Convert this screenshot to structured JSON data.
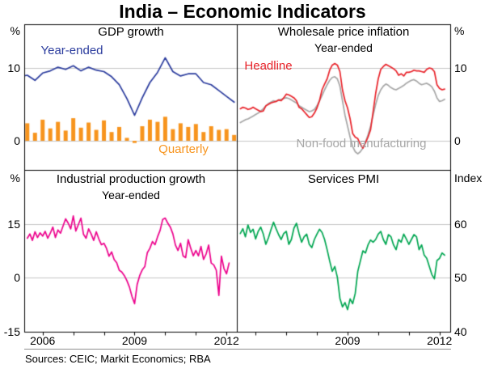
{
  "chart_data": {
    "type": "line",
    "title": "India – Economic Indicators",
    "sources": "Sources: CEIC; Markit Economics; RBA",
    "layout": {
      "rows": 2,
      "cols": 2,
      "grid": "on",
      "style": "four-panel-rba"
    },
    "colors": {
      "frame": "#000000",
      "grid": "#c6c6c6",
      "background": "#ffffff",
      "blue": "#2a3b9d",
      "orange": "#f7941d",
      "red": "#e8232a",
      "gray": "#a6a6a6",
      "pink": "#ec008c",
      "green": "#00a651"
    },
    "x_axis": {
      "range": [
        2005.4,
        2012.35
      ],
      "tick_years": [
        2006,
        2007,
        2008,
        2009,
        2010,
        2011,
        2012
      ],
      "labeled_ticks": {
        "left": [
          2006,
          2009,
          2012
        ],
        "right": [
          2009,
          2012
        ]
      }
    },
    "panels": [
      {
        "id": "gdp-growth",
        "title": "GDP growth",
        "subtitle": "",
        "position": "top-left",
        "y_axis_side": "left",
        "unit": "%",
        "ylim": [
          -4,
          16
        ],
        "yticks": [
          0,
          10
        ],
        "annotations": [
          {
            "text": "Year-ended",
            "color": "#2a3b9d"
          },
          {
            "text": "Quarterly",
            "color": "#f7941d"
          }
        ],
        "series": [
          {
            "name": "Quarterly",
            "type": "bar",
            "color": "#f7941d",
            "x_start": 2005.25,
            "x_step": 0.25,
            "values": [
              1.9,
              2.4,
              1.1,
              2.9,
              1.7,
              2.6,
              1.4,
              3.1,
              1.8,
              2.5,
              1.5,
              2.8,
              1.2,
              1.9,
              0.4,
              -0.3,
              2.0,
              2.9,
              2.6,
              3.3,
              1.6,
              2.4,
              1.9,
              2.3,
              1.2,
              2.0,
              1.5,
              1.6,
              0.8
            ]
          },
          {
            "name": "Year-ended",
            "type": "line",
            "color": "#2a3b9d",
            "x_start": 2005.25,
            "x_step": 0.25,
            "values": [
              8.8,
              9.0,
              8.3,
              9.3,
              9.6,
              10.1,
              9.8,
              10.3,
              9.6,
              10.1,
              9.7,
              9.5,
              8.8,
              7.7,
              5.8,
              3.5,
              5.9,
              8.0,
              9.4,
              11.4,
              9.5,
              8.9,
              9.2,
              9.2,
              8.0,
              7.7,
              6.9,
              6.1,
              5.3
            ]
          }
        ]
      },
      {
        "id": "wholesale-price-inflation",
        "title": "Wholesale price inflation",
        "subtitle": "Year-ended",
        "position": "top-right",
        "y_axis_side": "right",
        "unit": "%",
        "ylim": [
          -4,
          16
        ],
        "yticks": [
          0,
          10
        ],
        "annotations": [
          {
            "text": "Headline",
            "color": "#e8232a"
          },
          {
            "text": "Non-food manufacturing",
            "color": "#a6a6a6"
          }
        ],
        "series": [
          {
            "name": "Non-food manufacturing",
            "type": "line",
            "color": "#a6a6a6",
            "x_start": 2005.5,
            "x_step": 0.0833333,
            "values": [
              2.5,
              2.7,
              2.9,
              3.0,
              3.2,
              3.4,
              3.6,
              3.8,
              4.1,
              4.4,
              4.8,
              5.1,
              5.3,
              5.5,
              5.4,
              5.6,
              5.7,
              5.8,
              5.9,
              5.8,
              5.6,
              5.4,
              5.2,
              4.8,
              4.6,
              4.4,
              4.2,
              4.0,
              4.1,
              4.3,
              4.8,
              5.5,
              6.2,
              7.0,
              7.7,
              8.3,
              8.7,
              8.8,
              8.5,
              7.5,
              5.5,
              3.5,
              2.0,
              0.5,
              -0.8,
              -1.5,
              -1.8,
              -1.5,
              -1.0,
              -0.2,
              0.8,
              2.0,
              3.5,
              5.0,
              6.2,
              7.0,
              7.5,
              7.8,
              7.6,
              7.3,
              7.1,
              7.0,
              7.2,
              7.4,
              7.6,
              7.9,
              8.1,
              8.3,
              8.4,
              8.2,
              7.9,
              7.7,
              7.8,
              7.9,
              7.7,
              7.4,
              6.8,
              5.9,
              5.4,
              5.5,
              5.7
            ]
          },
          {
            "name": "Headline",
            "type": "line",
            "color": "#e8232a",
            "x_start": 2005.5,
            "x_step": 0.0833333,
            "values": [
              4.4,
              4.6,
              4.5,
              4.3,
              4.4,
              4.6,
              4.4,
              4.2,
              4.0,
              4.1,
              4.8,
              5.0,
              5.2,
              5.3,
              5.4,
              5.6,
              5.5,
              5.9,
              6.4,
              6.3,
              6.1,
              5.9,
              5.5,
              4.6,
              4.4,
              4.0,
              3.6,
              3.2,
              3.3,
              3.8,
              4.5,
              5.5,
              7.0,
              7.8,
              8.5,
              9.7,
              10.4,
              10.6,
              10.4,
              9.5,
              7.0,
              5.5,
              4.5,
              3.0,
              1.0,
              0.5,
              0.3,
              -0.5,
              -1.0,
              -0.3,
              0.5,
              1.5,
              4.0,
              6.5,
              8.5,
              9.8,
              10.2,
              10.5,
              10.3,
              10.1,
              9.9,
              9.6,
              9.0,
              9.2,
              8.9,
              9.4,
              9.4,
              9.5,
              9.7,
              9.6,
              9.6,
              9.5,
              9.4,
              9.8,
              10.0,
              9.9,
              9.5,
              7.7,
              7.2,
              7.0,
              7.1
            ]
          }
        ]
      },
      {
        "id": "industrial-production-growth",
        "title": "Industrial production growth",
        "subtitle": "Year-ended",
        "position": "bottom-left",
        "y_axis_side": "left",
        "unit": "%",
        "ylim": [
          -15,
          30
        ],
        "yticks": [
          -15,
          0,
          15
        ],
        "annotations": [],
        "series": [
          {
            "name": "Industrial production growth",
            "type": "line",
            "color": "#ec008c",
            "x_start": 2005.5,
            "x_step": 0.0833333,
            "values": [
              11.0,
              12.2,
              10.4,
              12.8,
              11.2,
              12.5,
              11.6,
              12.9,
              11.0,
              12.4,
              14.1,
              11.2,
              13.3,
              12.4,
              14.4,
              16.4,
              15.2,
              13.6,
              17.2,
              13.0,
              14.8,
              16.6,
              12.1,
              11.0,
              13.6,
              12.2,
              10.4,
              12.8,
              10.8,
              9.2,
              9.6,
              8.2,
              6.0,
              7.2,
              5.1,
              4.2,
              2.1,
              1.6,
              0.6,
              -0.8,
              -2.6,
              -5.2,
              -7.2,
              -1.9,
              0.6,
              2.2,
              3.1,
              7.0,
              8.2,
              10.1,
              9.2,
              11.4,
              13.2,
              16.2,
              16.6,
              15.2,
              14.1,
              12.2,
              9.1,
              7.6,
              9.6,
              6.1,
              5.6,
              10.6,
              8.2,
              6.1,
              7.6,
              6.1,
              8.7,
              5.1,
              6.6,
              9.1,
              4.1,
              3.6,
              2.1,
              -4.9,
              6.0,
              2.6,
              1.1,
              4.1
            ]
          }
        ]
      },
      {
        "id": "services-pmi",
        "title": "Services PMI",
        "subtitle": "",
        "position": "bottom-right",
        "y_axis_side": "right",
        "unit": "Index",
        "ylim": [
          40,
          70
        ],
        "yticks": [
          40,
          50,
          60
        ],
        "annotations": [],
        "series": [
          {
            "name": "Services PMI",
            "type": "line",
            "color": "#00a651",
            "x_start": 2005.5,
            "x_step": 0.0833333,
            "values": [
              58.2,
              59.1,
              57.6,
              59.8,
              58.4,
              59.0,
              57.2,
              58.6,
              59.4,
              58.1,
              56.2,
              57.4,
              58.9,
              60.3,
              59.1,
              58.0,
              57.1,
              58.2,
              58.6,
              56.2,
              57.1,
              59.2,
              60.1,
              58.2,
              56.6,
              57.6,
              58.1,
              56.2,
              55.6,
              57.1,
              58.1,
              59.0,
              58.4,
              57.1,
              55.2,
              53.1,
              51.2,
              52.1,
              50.1,
              46.2,
              44.6,
              45.4,
              44.1,
              46.1,
              45.2,
              47.1,
              51.2,
              53.1,
              55.0,
              54.6,
              56.1,
              57.0,
              56.6,
              57.1,
              58.1,
              58.6,
              57.1,
              56.2,
              58.0,
              57.6,
              56.1,
              55.2,
              57.1,
              56.6,
              58.1,
              57.2,
              56.2,
              57.1,
              58.0,
              57.6,
              55.2,
              56.1,
              54.2,
              53.6,
              52.1,
              50.6,
              49.8,
              53.2,
              53.6,
              54.6,
              54.2
            ]
          }
        ]
      }
    ]
  }
}
